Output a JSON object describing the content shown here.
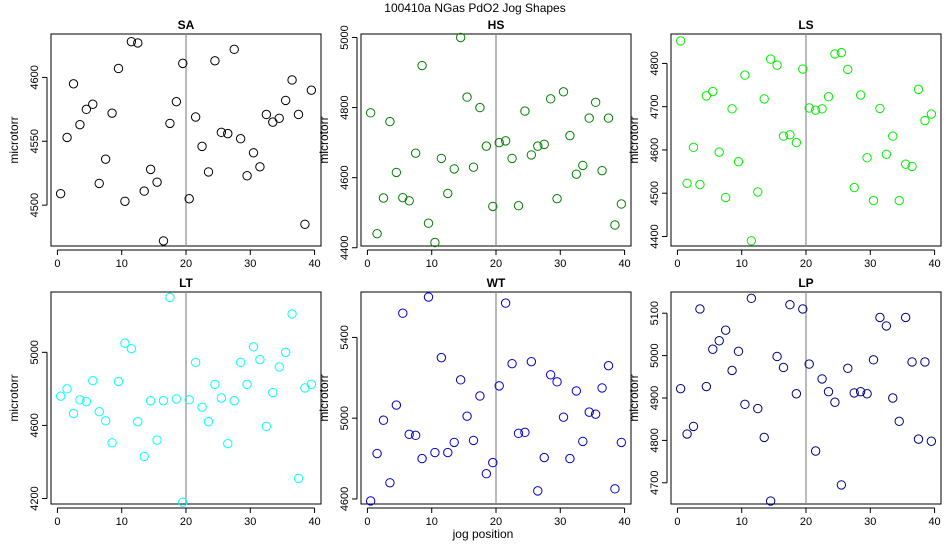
{
  "figure": {
    "title": "100410a    NGas PdO2 Jog Shapes",
    "xlabel": "jog position",
    "ylabel": "microtorr"
  },
  "chart_data": [
    {
      "type": "scatter",
      "title": "SA",
      "color": "#000000",
      "xlim": [
        -1,
        41
      ],
      "ylim": [
        4468,
        4634
      ],
      "xticks": [
        0,
        10,
        20,
        30,
        40
      ],
      "yticks": [
        4500,
        4550,
        4600
      ],
      "vline_x": 20,
      "x": [
        0.5,
        1.5,
        2.5,
        3.5,
        4.5,
        5.5,
        6.5,
        7.5,
        8.5,
        9.5,
        10.5,
        11.5,
        12.5,
        13.5,
        14.5,
        15.5,
        16.5,
        17.5,
        18.5,
        19.5,
        20.5,
        21.5,
        22.5,
        23.5,
        24.5,
        25.5,
        26.5,
        27.5,
        28.5,
        29.5,
        30.5,
        31.5,
        32.5,
        33.5,
        34.5,
        35.5,
        36.5,
        37.5,
        38.5,
        39.5
      ],
      "y": [
        4509,
        4553,
        4595,
        4563,
        4575,
        4579,
        4517,
        4536,
        4572,
        4607,
        4503,
        4628,
        4627,
        4511,
        4528,
        4518,
        4472,
        4564,
        4581,
        4611,
        4505,
        4569,
        4546,
        4526,
        4613,
        4557,
        4556,
        4622,
        4552,
        4523,
        4541,
        4530,
        4571,
        4565,
        4568,
        4582,
        4598,
        4571,
        4485,
        4590
      ]
    },
    {
      "type": "scatter",
      "title": "HS",
      "color": "#008000",
      "xlim": [
        -1,
        41
      ],
      "ylim": [
        4405,
        5010
      ],
      "xticks": [
        0,
        10,
        20,
        30,
        40
      ],
      "yticks": [
        4400,
        4600,
        4800,
        5000
      ],
      "vline_x": 20,
      "x": [
        0.5,
        1.5,
        2.5,
        3.5,
        4.5,
        5.5,
        6.5,
        7.5,
        8.5,
        9.5,
        10.5,
        11.5,
        12.5,
        13.5,
        14.5,
        15.5,
        16.5,
        17.5,
        18.5,
        19.5,
        20.5,
        21.5,
        22.5,
        23.5,
        24.5,
        25.5,
        26.5,
        27.5,
        28.5,
        29.5,
        30.5,
        31.5,
        32.5,
        33.5,
        34.5,
        35.5,
        36.5,
        37.5,
        38.5,
        39.5
      ],
      "y": [
        4785,
        4440,
        4542,
        4760,
        4615,
        4543,
        4534,
        4670,
        4920,
        4470,
        4415,
        4655,
        4555,
        4625,
        5000,
        4830,
        4630,
        4800,
        4690,
        4518,
        4700,
        4705,
        4655,
        4520,
        4790,
        4665,
        4690,
        4695,
        4825,
        4540,
        4845,
        4720,
        4610,
        4635,
        4770,
        4815,
        4620,
        4770,
        4465,
        4525
      ]
    },
    {
      "type": "scatter",
      "title": "LS",
      "color": "#00ee00",
      "xlim": [
        -1,
        41
      ],
      "ylim": [
        4378,
        4868
      ],
      "xticks": [
        0,
        10,
        20,
        30,
        40
      ],
      "yticks": [
        4400,
        4500,
        4600,
        4700,
        4800
      ],
      "vline_x": 20,
      "x": [
        0.5,
        1.5,
        2.5,
        3.5,
        4.5,
        5.5,
        6.5,
        7.5,
        8.5,
        9.5,
        10.5,
        11.5,
        12.5,
        13.5,
        14.5,
        15.5,
        16.5,
        17.5,
        18.5,
        19.5,
        20.5,
        21.5,
        22.5,
        23.5,
        24.5,
        25.5,
        26.5,
        27.5,
        28.5,
        29.5,
        30.5,
        31.5,
        32.5,
        33.5,
        34.5,
        35.5,
        36.5,
        37.5,
        38.5,
        39.5
      ],
      "y": [
        4852,
        4523,
        4606,
        4520,
        4725,
        4735,
        4595,
        4490,
        4695,
        4573,
        4773,
        4390,
        4503,
        4718,
        4810,
        4796,
        4632,
        4635,
        4617,
        4787,
        4697,
        4692,
        4695,
        4723,
        4822,
        4825,
        4786,
        4513,
        4727,
        4582,
        4483,
        4696,
        4590,
        4632,
        4483,
        4567,
        4562,
        4740,
        4668,
        4683
      ]
    },
    {
      "type": "scatter",
      "title": "LT",
      "color": "#00ffff",
      "xlim": [
        -1,
        41
      ],
      "ylim": [
        4170,
        5330
      ],
      "xticks": [
        0,
        10,
        20,
        30,
        40
      ],
      "yticks": [
        4200,
        4600,
        5000
      ],
      "vline_x": 20,
      "x": [
        0.5,
        1.5,
        2.5,
        3.5,
        4.5,
        5.5,
        6.5,
        7.5,
        8.5,
        9.5,
        10.5,
        11.5,
        12.5,
        13.5,
        14.5,
        15.5,
        16.5,
        17.5,
        18.5,
        19.5,
        20.5,
        21.5,
        22.5,
        23.5,
        24.5,
        25.5,
        26.5,
        27.5,
        28.5,
        29.5,
        30.5,
        31.5,
        32.5,
        33.5,
        34.5,
        35.5,
        36.5,
        37.5,
        38.5,
        39.5
      ],
      "y": [
        4760,
        4800,
        4665,
        4740,
        4730,
        4845,
        4675,
        4625,
        4505,
        4840,
        5050,
        5020,
        4620,
        4430,
        4735,
        4520,
        4735,
        5300,
        4745,
        4180,
        4740,
        4945,
        4700,
        4620,
        4825,
        4750,
        4500,
        4735,
        4945,
        4825,
        5030,
        4960,
        4595,
        4780,
        4920,
        5000,
        5210,
        4310,
        4805,
        4825
      ]
    },
    {
      "type": "scatter",
      "title": "WT",
      "color": "#0000cd",
      "xlim": [
        -1,
        41
      ],
      "ylim": [
        4575,
        5625
      ],
      "xticks": [
        0,
        10,
        20,
        30,
        40
      ],
      "yticks": [
        4600,
        5000,
        5400
      ],
      "vline_x": 20,
      "x": [
        0.5,
        1.5,
        2.5,
        3.5,
        4.5,
        5.5,
        6.5,
        7.5,
        8.5,
        9.5,
        10.5,
        11.5,
        12.5,
        13.5,
        14.5,
        15.5,
        16.5,
        17.5,
        18.5,
        19.5,
        20.5,
        21.5,
        22.5,
        23.5,
        24.5,
        25.5,
        26.5,
        27.5,
        28.5,
        29.5,
        30.5,
        31.5,
        32.5,
        33.5,
        34.5,
        35.5,
        36.5,
        37.5,
        38.5,
        39.5
      ],
      "y": [
        4590,
        4825,
        4990,
        4680,
        5065,
        5520,
        4920,
        4915,
        4800,
        5600,
        4830,
        5300,
        4830,
        4880,
        5190,
        5010,
        4890,
        5110,
        4725,
        4780,
        5160,
        5570,
        5270,
        4925,
        4930,
        5280,
        4640,
        4805,
        5215,
        5180,
        5005,
        4800,
        5135,
        4885,
        5030,
        5020,
        5150,
        5260,
        4650,
        4880
      ]
    },
    {
      "type": "scatter",
      "title": "LP",
      "color": "#000080",
      "xlim": [
        -1,
        41
      ],
      "ylim": [
        4650,
        5150
      ],
      "xticks": [
        0,
        10,
        20,
        30,
        40
      ],
      "yticks": [
        4700,
        4800,
        4900,
        5000,
        5100
      ],
      "vline_x": 20,
      "x": [
        0.5,
        1.5,
        2.5,
        3.5,
        4.5,
        5.5,
        6.5,
        7.5,
        8.5,
        9.5,
        10.5,
        11.5,
        12.5,
        13.5,
        14.5,
        15.5,
        16.5,
        17.5,
        18.5,
        19.5,
        20.5,
        21.5,
        22.5,
        23.5,
        24.5,
        25.5,
        26.5,
        27.5,
        28.5,
        29.5,
        30.5,
        31.5,
        32.5,
        33.5,
        34.5,
        35.5,
        36.5,
        37.5,
        38.5,
        39.5
      ],
      "y": [
        4922,
        4815,
        4833,
        5110,
        4927,
        5015,
        5035,
        5060,
        4965,
        5010,
        4885,
        5135,
        4875,
        4807,
        4657,
        4998,
        4972,
        5120,
        4910,
        5110,
        4980,
        4775,
        4945,
        4915,
        4890,
        4695,
        4970,
        4912,
        4915,
        4910,
        4990,
        5090,
        5070,
        4900,
        4845,
        5090,
        4985,
        4803,
        4985,
        4798
      ]
    }
  ]
}
